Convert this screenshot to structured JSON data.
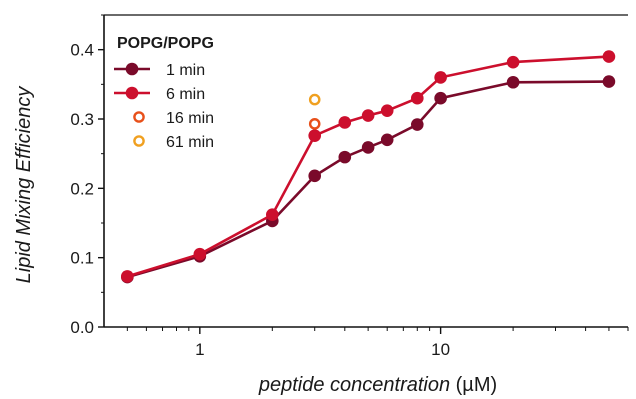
{
  "chart_data": {
    "type": "line",
    "title": "",
    "xlabel_italic": "peptide concentration",
    "xlabel_unit": " (µM)",
    "ylabel": "Lipid Mixing Efficiency",
    "xscale": "log",
    "xlim": [
      0.4,
      60
    ],
    "ylim": [
      0.0,
      0.45
    ],
    "x_ticks": [
      {
        "value": 1,
        "label": "1"
      },
      {
        "value": 10,
        "label": "10"
      }
    ],
    "y_ticks": [
      {
        "value": 0.0,
        "label": "0.0"
      },
      {
        "value": 0.1,
        "label": "0.1"
      },
      {
        "value": 0.2,
        "label": "0.2"
      },
      {
        "value": 0.3,
        "label": "0.3"
      },
      {
        "value": 0.4,
        "label": "0.4"
      }
    ],
    "legend": {
      "title": "POPG/POPG",
      "placement": "top-left"
    },
    "series": [
      {
        "name": "1 min",
        "color": "#7a0a2a",
        "style": "filled-line",
        "points": [
          [
            0.5,
            0.072
          ],
          [
            1,
            0.102
          ],
          [
            2,
            0.153
          ],
          [
            3,
            0.218
          ],
          [
            4,
            0.245
          ],
          [
            5,
            0.259
          ],
          [
            6,
            0.27
          ],
          [
            8,
            0.292
          ],
          [
            10,
            0.33
          ],
          [
            20,
            0.353
          ],
          [
            50,
            0.354
          ]
        ]
      },
      {
        "name": "6 min",
        "color": "#cc0f2d",
        "style": "filled-line",
        "points": [
          [
            0.5,
            0.073
          ],
          [
            1,
            0.105
          ],
          [
            2,
            0.162
          ],
          [
            3,
            0.276
          ],
          [
            4,
            0.295
          ],
          [
            5,
            0.305
          ],
          [
            6,
            0.312
          ],
          [
            8,
            0.33
          ],
          [
            10,
            0.36
          ],
          [
            20,
            0.382
          ],
          [
            50,
            0.39
          ]
        ]
      },
      {
        "name": "16 min",
        "color": "#e8501a",
        "style": "open-marker",
        "points": [
          [
            3,
            0.293
          ]
        ]
      },
      {
        "name": "61 min",
        "color": "#f0a020",
        "style": "open-marker",
        "points": [
          [
            3,
            0.328
          ]
        ]
      }
    ]
  }
}
